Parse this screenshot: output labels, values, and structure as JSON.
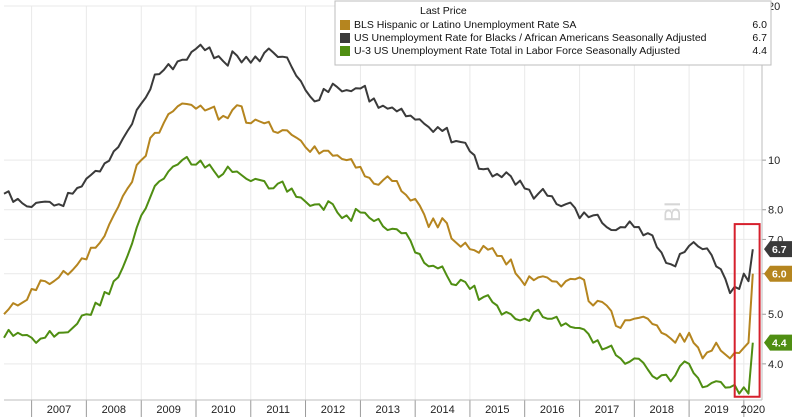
{
  "chart_data": {
    "type": "line",
    "y_scale": "log",
    "ylim": [
      3.4,
      20
    ],
    "xlim": [
      "2006-07-01",
      "2020-05-01"
    ],
    "y_ticks": [
      "4.0",
      "5.0",
      "6.0",
      "7.0",
      "8.0",
      "10",
      "20"
    ],
    "x_ticks": [
      "2007",
      "2008",
      "2009",
      "2010",
      "2011",
      "2012",
      "2013",
      "2014",
      "2015",
      "2016",
      "2017",
      "2018",
      "2019",
      "2020"
    ],
    "grid": true,
    "legend": {
      "title": "Last Price",
      "position": "top-right"
    },
    "series": [
      {
        "name": "BLS Hispanic or Latino Unemployment Rate SA",
        "color": "#b5851f",
        "last": "6.0",
        "points": [
          [
            "2006-07-01",
            5.0
          ],
          [
            "2006-10-01",
            5.2
          ],
          [
            "2007-01-01",
            5.6
          ],
          [
            "2007-04-01",
            5.8
          ],
          [
            "2007-07-01",
            5.9
          ],
          [
            "2007-10-01",
            6.1
          ],
          [
            "2008-01-01",
            6.4
          ],
          [
            "2008-04-01",
            6.9
          ],
          [
            "2008-07-01",
            7.8
          ],
          [
            "2008-10-01",
            8.8
          ],
          [
            "2009-01-01",
            10.0
          ],
          [
            "2009-04-01",
            11.3
          ],
          [
            "2009-07-01",
            12.3
          ],
          [
            "2009-10-01",
            12.9
          ],
          [
            "2010-01-01",
            12.6
          ],
          [
            "2010-04-01",
            12.6
          ],
          [
            "2010-07-01",
            12.2
          ],
          [
            "2010-10-01",
            12.8
          ],
          [
            "2011-01-01",
            11.8
          ],
          [
            "2011-04-01",
            11.8
          ],
          [
            "2011-07-01",
            11.3
          ],
          [
            "2011-10-01",
            11.2
          ],
          [
            "2012-01-01",
            10.6
          ],
          [
            "2012-04-01",
            10.3
          ],
          [
            "2012-07-01",
            10.2
          ],
          [
            "2012-10-01",
            10.0
          ],
          [
            "2013-01-01",
            9.7
          ],
          [
            "2013-04-01",
            9.0
          ],
          [
            "2013-07-01",
            9.3
          ],
          [
            "2013-10-01",
            8.7
          ],
          [
            "2014-01-01",
            8.4
          ],
          [
            "2014-04-01",
            7.4
          ],
          [
            "2014-07-01",
            7.7
          ],
          [
            "2014-10-01",
            6.9
          ],
          [
            "2015-01-01",
            6.7
          ],
          [
            "2015-04-01",
            6.8
          ],
          [
            "2015-07-01",
            6.5
          ],
          [
            "2015-10-01",
            6.4
          ],
          [
            "2016-01-01",
            5.7
          ],
          [
            "2016-04-01",
            5.9
          ],
          [
            "2016-07-01",
            5.8
          ],
          [
            "2016-10-01",
            5.8
          ],
          [
            "2017-01-01",
            5.9
          ],
          [
            "2017-04-01",
            5.2
          ],
          [
            "2017-07-01",
            5.2
          ],
          [
            "2017-10-01",
            4.7
          ],
          [
            "2018-01-01",
            4.9
          ],
          [
            "2018-04-01",
            4.9
          ],
          [
            "2018-07-01",
            4.6
          ],
          [
            "2018-10-01",
            4.4
          ],
          [
            "2019-01-01",
            4.6
          ],
          [
            "2019-04-01",
            4.1
          ],
          [
            "2019-07-01",
            4.4
          ],
          [
            "2019-10-01",
            4.1
          ],
          [
            "2019-12-01",
            4.2
          ],
          [
            "2020-01-01",
            4.3
          ],
          [
            "2020-02-01",
            4.4
          ],
          [
            "2020-03-01",
            6.0
          ]
        ]
      },
      {
        "name": "US Unemployment Rate for Blacks / African Americans Seasonally Adjusted",
        "color": "#3a3a3a",
        "last": "6.7",
        "points": [
          [
            "2006-07-01",
            8.6
          ],
          [
            "2006-10-01",
            8.4
          ],
          [
            "2007-01-01",
            8.1
          ],
          [
            "2007-04-01",
            8.3
          ],
          [
            "2007-07-01",
            8.2
          ],
          [
            "2007-10-01",
            8.6
          ],
          [
            "2008-01-01",
            9.2
          ],
          [
            "2008-04-01",
            9.5
          ],
          [
            "2008-07-01",
            10.4
          ],
          [
            "2008-10-01",
            11.4
          ],
          [
            "2009-01-01",
            12.9
          ],
          [
            "2009-04-01",
            14.7
          ],
          [
            "2009-07-01",
            15.4
          ],
          [
            "2009-10-01",
            15.7
          ],
          [
            "2010-01-01",
            16.5
          ],
          [
            "2010-04-01",
            16.6
          ],
          [
            "2010-07-01",
            15.6
          ],
          [
            "2010-10-01",
            16.0
          ],
          [
            "2011-01-01",
            15.5
          ],
          [
            "2011-04-01",
            16.2
          ],
          [
            "2011-07-01",
            15.9
          ],
          [
            "2011-10-01",
            15.2
          ],
          [
            "2012-01-01",
            13.7
          ],
          [
            "2012-04-01",
            13.1
          ],
          [
            "2012-07-01",
            14.1
          ],
          [
            "2012-10-01",
            13.7
          ],
          [
            "2013-01-01",
            13.8
          ],
          [
            "2013-04-01",
            13.2
          ],
          [
            "2013-07-01",
            12.6
          ],
          [
            "2013-10-01",
            12.6
          ],
          [
            "2014-01-01",
            12.0
          ],
          [
            "2014-04-01",
            11.6
          ],
          [
            "2014-07-01",
            11.4
          ],
          [
            "2014-10-01",
            10.9
          ],
          [
            "2015-01-01",
            10.4
          ],
          [
            "2015-04-01",
            9.6
          ],
          [
            "2015-07-01",
            9.4
          ],
          [
            "2015-10-01",
            9.3
          ],
          [
            "2016-01-01",
            8.8
          ],
          [
            "2016-04-01",
            8.6
          ],
          [
            "2016-07-01",
            8.5
          ],
          [
            "2016-10-01",
            8.2
          ],
          [
            "2017-01-01",
            7.7
          ],
          [
            "2017-04-01",
            7.8
          ],
          [
            "2017-07-01",
            7.4
          ],
          [
            "2017-10-01",
            7.4
          ],
          [
            "2018-01-01",
            7.4
          ],
          [
            "2018-04-01",
            7.2
          ],
          [
            "2018-07-01",
            6.6
          ],
          [
            "2018-10-01",
            6.2
          ],
          [
            "2019-01-01",
            6.8
          ],
          [
            "2019-04-01",
            6.7
          ],
          [
            "2019-07-01",
            6.2
          ],
          [
            "2019-10-01",
            5.5
          ],
          [
            "2019-12-01",
            5.6
          ],
          [
            "2020-01-01",
            6.0
          ],
          [
            "2020-02-01",
            5.8
          ],
          [
            "2020-03-01",
            6.7
          ]
        ]
      },
      {
        "name": "U-3 US Unemployment Rate Total in Labor Force Seasonally Adjusted",
        "color": "#4f8e12",
        "last": "4.4",
        "points": [
          [
            "2006-07-01",
            4.5
          ],
          [
            "2006-10-01",
            4.6
          ],
          [
            "2007-01-01",
            4.5
          ],
          [
            "2007-04-01",
            4.5
          ],
          [
            "2007-07-01",
            4.6
          ],
          [
            "2007-10-01",
            4.7
          ],
          [
            "2008-01-01",
            5.0
          ],
          [
            "2008-04-01",
            5.2
          ],
          [
            "2008-07-01",
            5.8
          ],
          [
            "2008-10-01",
            6.5
          ],
          [
            "2009-01-01",
            7.8
          ],
          [
            "2009-04-01",
            8.9
          ],
          [
            "2009-07-01",
            9.5
          ],
          [
            "2009-10-01",
            10.0
          ],
          [
            "2010-01-01",
            9.8
          ],
          [
            "2010-04-01",
            9.8
          ],
          [
            "2010-07-01",
            9.4
          ],
          [
            "2010-10-01",
            9.5
          ],
          [
            "2011-01-01",
            9.1
          ],
          [
            "2011-04-01",
            9.1
          ],
          [
            "2011-07-01",
            9.0
          ],
          [
            "2011-10-01",
            8.8
          ],
          [
            "2012-01-01",
            8.3
          ],
          [
            "2012-04-01",
            8.2
          ],
          [
            "2012-07-01",
            8.2
          ],
          [
            "2012-10-01",
            7.8
          ],
          [
            "2013-01-01",
            7.9
          ],
          [
            "2013-04-01",
            7.6
          ],
          [
            "2013-07-01",
            7.3
          ],
          [
            "2013-10-01",
            7.2
          ],
          [
            "2014-01-01",
            6.6
          ],
          [
            "2014-04-01",
            6.2
          ],
          [
            "2014-07-01",
            6.2
          ],
          [
            "2014-10-01",
            5.7
          ],
          [
            "2015-01-01",
            5.6
          ],
          [
            "2015-04-01",
            5.4
          ],
          [
            "2015-07-01",
            5.2
          ],
          [
            "2015-10-01",
            5.0
          ],
          [
            "2016-01-01",
            4.9
          ],
          [
            "2016-04-01",
            5.1
          ],
          [
            "2016-07-01",
            4.9
          ],
          [
            "2016-10-01",
            4.8
          ],
          [
            "2017-01-01",
            4.7
          ],
          [
            "2017-04-01",
            4.4
          ],
          [
            "2017-07-01",
            4.3
          ],
          [
            "2017-10-01",
            4.1
          ],
          [
            "2018-01-01",
            4.1
          ],
          [
            "2018-04-01",
            3.9
          ],
          [
            "2018-07-01",
            3.8
          ],
          [
            "2018-10-01",
            3.8
          ],
          [
            "2019-01-01",
            4.0
          ],
          [
            "2019-04-01",
            3.6
          ],
          [
            "2019-07-01",
            3.7
          ],
          [
            "2019-10-01",
            3.6
          ],
          [
            "2019-12-01",
            3.5
          ],
          [
            "2020-01-01",
            3.6
          ],
          [
            "2020-02-01",
            3.5
          ],
          [
            "2020-03-01",
            4.4
          ]
        ]
      }
    ],
    "highlight": {
      "from": "2019-11-01",
      "to": "2020-04-15",
      "y_range": [
        3.45,
        7.5
      ],
      "color": "#d6202d"
    }
  },
  "watermark": "BI"
}
